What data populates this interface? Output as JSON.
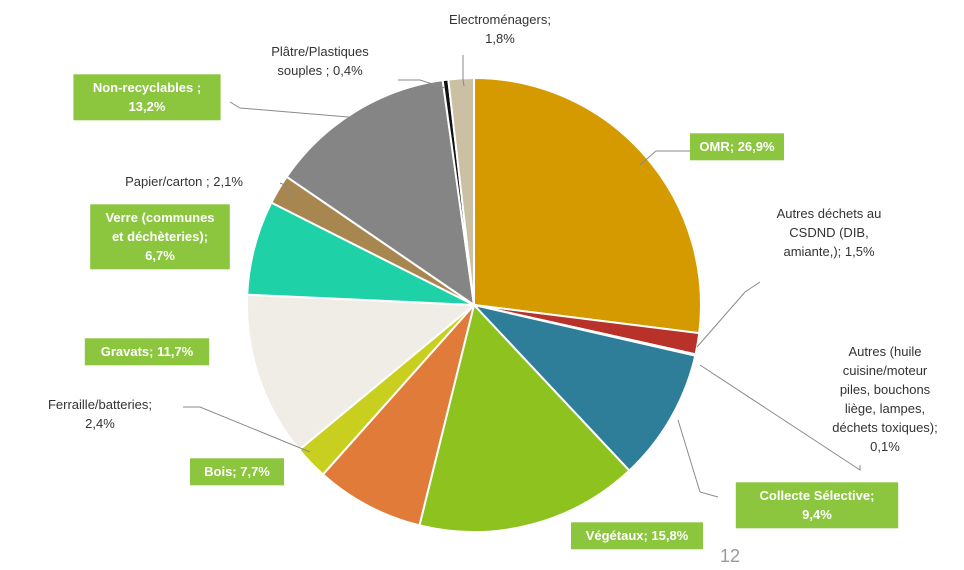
{
  "chart_data": {
    "type": "pie",
    "title": "",
    "slices": [
      {
        "name": "OMR",
        "value": 26.9,
        "label_lines": [
          "OMR; 26,9%"
        ],
        "color": "#d49a00",
        "highlight": true
      },
      {
        "name": "Autres déchets au CSDND (DIB, amiante,)",
        "value": 1.5,
        "label_lines": [
          "Autres déchets au",
          "CSDND (DIB,",
          "amiante,); 1,5%"
        ],
        "color": "#b8322a",
        "highlight": false
      },
      {
        "name": "Autres (huile cuisine/moteur piles, bouchons liège, lampes, déchets toxiques)",
        "value": 0.1,
        "label_lines": [
          "Autres (huile",
          "cuisine/moteur",
          "piles, bouchons",
          "liège, lampes,",
          "déchets toxiques);",
          "0,1%"
        ],
        "color": "#6a3d8f",
        "highlight": false
      },
      {
        "name": "Collecte Sélective",
        "value": 9.4,
        "label_lines": [
          "Collecte Sélective;",
          "9,4%"
        ],
        "color": "#2e7e9a",
        "highlight": true
      },
      {
        "name": "Végétaux",
        "value": 15.8,
        "label_lines": [
          "Végétaux; 15,8%"
        ],
        "color": "#8dc21f",
        "highlight": true
      },
      {
        "name": "Bois",
        "value": 7.7,
        "label_lines": [
          "Bois; 7,7%"
        ],
        "color": "#e07b39",
        "highlight": true
      },
      {
        "name": "Ferraille/batteries",
        "value": 2.4,
        "label_lines": [
          "Ferraille/batteries;",
          "2,4%"
        ],
        "color": "#c9cf1e",
        "highlight": false
      },
      {
        "name": "Gravats",
        "value": 11.7,
        "label_lines": [
          "Gravats; 11,7%"
        ],
        "color": "#efede6",
        "highlight": true
      },
      {
        "name": "Verre (communes et déchèteries)",
        "value": 6.7,
        "label_lines": [
          "Verre (communes",
          "et déchèteries);",
          "6,7%"
        ],
        "color": "#1fd1a6",
        "highlight": true
      },
      {
        "name": "Papier/carton",
        "value": 2.1,
        "label_lines": [
          "Papier/carton ; 2,1%"
        ],
        "color": "#a8864f",
        "highlight": false
      },
      {
        "name": "Non-recyclables",
        "value": 13.2,
        "label_lines": [
          "Non-recyclables ;",
          "13,2%"
        ],
        "color": "#858585",
        "highlight": true
      },
      {
        "name": "Plâtre/Plastiques souples",
        "value": 0.4,
        "label_lines": [
          "Plâtre/Plastiques",
          "souples ; 0,4%"
        ],
        "color": "#111111",
        "highlight": false
      },
      {
        "name": "Electroménagers",
        "value": 1.8,
        "label_lines": [
          "Electroménagers;",
          "1,8%"
        ],
        "color": "#cbc0a3",
        "highlight": false
      }
    ]
  },
  "page": {
    "number": "12"
  }
}
